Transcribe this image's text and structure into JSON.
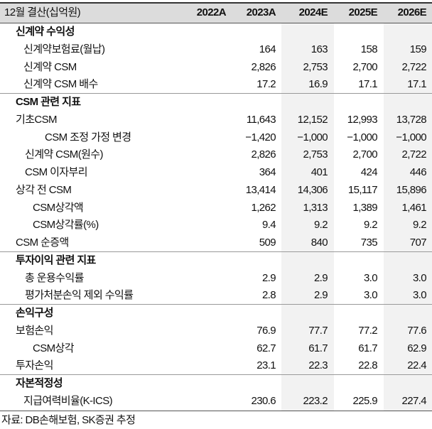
{
  "header": {
    "title": "12월 결산(십억원)",
    "columns": [
      "2022A",
      "2023A",
      "2024E",
      "2025E",
      "2026E"
    ]
  },
  "sections": [
    {
      "title": "신계약 수익성",
      "rows": [
        {
          "label": "신계약보험료(월납)",
          "values": [
            null,
            "164",
            "163",
            "158",
            "159"
          ]
        },
        {
          "label": "신계약 CSM",
          "values": [
            null,
            "2,826",
            "2,753",
            "2,700",
            "2,722"
          ]
        },
        {
          "label": "신계약 CSM 배수",
          "values": [
            null,
            "17.2",
            "16.9",
            "17.1",
            "17.1"
          ]
        }
      ]
    },
    {
      "title": "CSM 관련 지표",
      "rows": [
        {
          "label": "기초CSM",
          "values": [
            null,
            "11,643",
            "12,152",
            "12,993",
            "13,728"
          ]
        },
        {
          "label": "CSM 조정 가정 변경",
          "values": [
            null,
            "−1,420",
            "−1,000",
            "−1,000",
            "−1,000"
          ]
        },
        {
          "label": "신계약 CSM(원수)",
          "values": [
            null,
            "2,826",
            "2,753",
            "2,700",
            "2,722"
          ]
        },
        {
          "label": "CSM 이자부리",
          "values": [
            null,
            "364",
            "401",
            "424",
            "446"
          ]
        },
        {
          "label": "상각 전 CSM",
          "values": [
            null,
            "13,414",
            "14,306",
            "15,117",
            "15,896"
          ]
        },
        {
          "label": "CSM상각액",
          "values": [
            null,
            "1,262",
            "1,313",
            "1,389",
            "1,461"
          ]
        },
        {
          "label": "CSM상각률(%)",
          "values": [
            null,
            "9.4",
            "9.2",
            "9.2",
            "9.2"
          ]
        },
        {
          "label": "CSM 순증액",
          "values": [
            null,
            "509",
            "840",
            "735",
            "707"
          ]
        }
      ]
    },
    {
      "title": "투자이익 관련 지표",
      "rows": [
        {
          "label": "총 운용수익률",
          "values": [
            null,
            "2.9",
            "2.9",
            "3.0",
            "3.0"
          ]
        },
        {
          "label": "평가처분손익 제외 수익률",
          "values": [
            null,
            "2.8",
            "2.9",
            "3.0",
            "3.0"
          ]
        }
      ]
    },
    {
      "title": "손익구성",
      "rows": [
        {
          "label": "보험손익",
          "values": [
            null,
            "76.9",
            "77.7",
            "77.2",
            "77.6"
          ]
        },
        {
          "label": "CSM상각",
          "values": [
            null,
            "62.7",
            "61.7",
            "61.7",
            "62.9"
          ]
        },
        {
          "label": "투자손익",
          "values": [
            null,
            "23.1",
            "22.3",
            "22.8",
            "22.4"
          ]
        }
      ]
    },
    {
      "title": "자본적정성",
      "rows": [
        {
          "label": "지급여력비율(K-ICS)",
          "values": [
            null,
            "230.6",
            "223.2",
            "225.9",
            "227.4"
          ]
        }
      ]
    }
  ],
  "source": "자료: DB손해보험, SK증권 추정"
}
